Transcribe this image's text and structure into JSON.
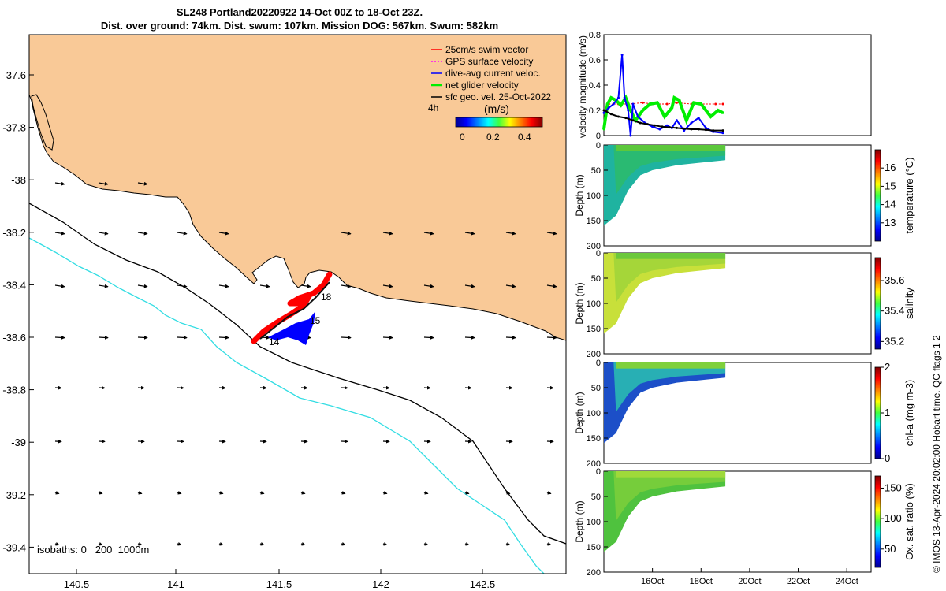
{
  "title": {
    "line1": "SL248 Portland20220922 14-Oct 00Z to 18-Oct 23Z.",
    "line2": "Dist. over ground: 74km. Dist. swum: 107km. Mission DOG: 567km. Swum: 582km"
  },
  "colors": {
    "land": "#f9c997",
    "isobath_200": "#000000",
    "isobath_1000": "#33dde3",
    "swim_vector": "#ff0000",
    "gps_surface": "#ff00ff",
    "dive_avg": "#0000ff",
    "net_velocity": "#00ee00",
    "sfc_geo": "#000000"
  },
  "map": {
    "legend": [
      {
        "label": "25cm/s swim vector",
        "color": "#ff0000"
      },
      {
        "label": "GPS surface velocity",
        "color": "#ff00ff"
      },
      {
        "label": "dive-avg current veloc.",
        "color": "#0000ff"
      },
      {
        "label": "net glider velocity",
        "color": "#00ee00"
      },
      {
        "label": "sfc geo. vel. 25-Oct-2022",
        "color": "#000000"
      }
    ],
    "interval_label": "4h",
    "colorbar_unit": "(m/s)",
    "colorbar_ticks": [
      "0",
      "0.2",
      "0.4"
    ],
    "isobaths_label": "isobaths: 0   200  1000m",
    "day_labels": [
      "14",
      "15",
      "18"
    ],
    "x_ticks": [
      "140.5",
      "141",
      "141.5",
      "142",
      "142.5"
    ],
    "y_ticks": [
      "-37.6",
      "-37.8",
      "-38",
      "-38.2",
      "-38.4",
      "-38.6",
      "-38.8",
      "-39",
      "-39.2",
      "-39.4"
    ]
  },
  "panels": {
    "velocity": {
      "ylabel": "velocity magnitude (m/s)",
      "y_ticks": [
        "0",
        "0.2",
        "0.4",
        "0.6",
        "0.8"
      ]
    },
    "temperature": {
      "ylabel": "Depth (m)",
      "cb_label": "temperature (°C)",
      "cb_ticks": [
        "13",
        "14",
        "15",
        "16"
      ]
    },
    "salinity": {
      "ylabel": "Depth (m)",
      "cb_label": "salinity",
      "cb_ticks": [
        "35.2",
        "35.4",
        "35.6"
      ]
    },
    "chla": {
      "ylabel": "Depth (m)",
      "cb_label": "chl-a (mg m-3)",
      "cb_ticks": [
        "0",
        "1",
        "2"
      ]
    },
    "oxygen": {
      "ylabel": "Depth (m)",
      "cb_label": "Ox. sat. ratio (%)",
      "cb_ticks": [
        "50",
        "100",
        "150"
      ]
    },
    "depth_ticks": [
      "0",
      "50",
      "100",
      "150",
      "200"
    ],
    "x_ticks": [
      "16Oct",
      "18Oct",
      "20Oct",
      "22Oct",
      "24Oct"
    ]
  },
  "copyright": "© IMOS 13-Apr-2024 20:02:00 Hobart time. QC flags 1  2",
  "chart_data": [
    {
      "type": "line",
      "title": "",
      "ylabel": "velocity magnitude (m/s)",
      "x_unit": "days since 14-Oct 00Z",
      "xlim": [
        "14-Oct",
        "25-Oct"
      ],
      "ylim": [
        0,
        0.8
      ],
      "series": [
        {
          "name": "25cm/s swim vector",
          "x": [
            0.2,
            0.6,
            1.0,
            1.6,
            2.0,
            2.6,
            3.0,
            3.6,
            4.0,
            4.6,
            4.9
          ],
          "y": [
            0.25,
            0.25,
            0.25,
            0.26,
            0.25,
            0.25,
            0.26,
            0.25,
            0.25,
            0.25,
            0.25
          ]
        },
        {
          "name": "net glider velocity",
          "x": [
            0.0,
            0.15,
            0.3,
            0.5,
            0.7,
            0.9,
            1.1,
            1.3,
            1.6,
            1.9,
            2.2,
            2.5,
            2.8,
            2.9,
            3.1,
            3.4,
            3.7,
            4.0,
            4.2,
            4.4,
            4.7,
            4.9
          ],
          "y": [
            0.05,
            0.25,
            0.3,
            0.28,
            0.24,
            0.3,
            0.2,
            0.12,
            0.2,
            0.25,
            0.26,
            0.15,
            0.22,
            0.3,
            0.28,
            0.12,
            0.26,
            0.25,
            0.2,
            0.15,
            0.2,
            0.18
          ]
        },
        {
          "name": "dive-avg current veloc.",
          "x": [
            0.0,
            0.2,
            0.4,
            0.6,
            0.75,
            0.85,
            1.0,
            1.1,
            1.2,
            1.4,
            1.7,
            2.0,
            2.3,
            2.6,
            2.8,
            3.0,
            3.3,
            3.6,
            3.9,
            4.2,
            4.5,
            4.9
          ],
          "y": [
            0.18,
            0.22,
            0.25,
            0.3,
            0.64,
            0.3,
            0.2,
            0.0,
            0.25,
            0.15,
            0.1,
            0.07,
            0.05,
            0.08,
            0.06,
            0.12,
            0.04,
            0.1,
            0.14,
            0.06,
            0.03,
            0.02
          ]
        },
        {
          "name": "sfc geo. vel.",
          "x": [
            0.0,
            0.3,
            0.6,
            0.9,
            1.2,
            1.5,
            1.8,
            2.1,
            2.4,
            2.7,
            3.0,
            3.3,
            3.6,
            3.9,
            4.2,
            4.5,
            4.9
          ],
          "y": [
            0.2,
            0.17,
            0.15,
            0.14,
            0.12,
            0.1,
            0.09,
            0.08,
            0.07,
            0.065,
            0.06,
            0.055,
            0.05,
            0.05,
            0.045,
            0.04,
            0.04
          ]
        }
      ]
    },
    {
      "type": "heatmap",
      "variable": "temperature (°C)",
      "ylabel": "Depth (m)",
      "ylim": [
        200,
        0
      ],
      "clim": [
        12,
        17
      ],
      "max_depth_by_day": {
        "x": [
          0,
          0.5,
          1,
          1.5,
          2,
          3,
          4,
          5
        ],
        "depth": [
          160,
          140,
          90,
          60,
          50,
          40,
          35,
          30
        ]
      }
    },
    {
      "type": "heatmap",
      "variable": "salinity",
      "ylabel": "Depth (m)",
      "ylim": [
        200,
        0
      ],
      "clim": [
        35.15,
        35.75
      ],
      "max_depth_by_day": {
        "x": [
          0,
          0.5,
          1,
          1.5,
          2,
          3,
          4,
          5
        ],
        "depth": [
          160,
          140,
          90,
          60,
          50,
          40,
          35,
          30
        ]
      }
    },
    {
      "type": "heatmap",
      "variable": "chl-a (mg m-3)",
      "ylabel": "Depth (m)",
      "ylim": [
        200,
        0
      ],
      "clim": [
        0,
        2
      ],
      "max_depth_by_day": {
        "x": [
          0,
          0.5,
          1,
          1.5,
          2,
          3,
          4,
          5
        ],
        "depth": [
          160,
          140,
          90,
          60,
          50,
          40,
          35,
          30
        ]
      }
    },
    {
      "type": "heatmap",
      "variable": "Ox. sat. ratio (%)",
      "ylabel": "Depth (m)",
      "ylim": [
        200,
        0
      ],
      "clim": [
        20,
        170
      ],
      "max_depth_by_day": {
        "x": [
          0,
          0.5,
          1,
          1.5,
          2,
          3,
          4,
          5
        ],
        "depth": [
          160,
          140,
          90,
          60,
          50,
          40,
          35,
          30
        ]
      }
    }
  ]
}
